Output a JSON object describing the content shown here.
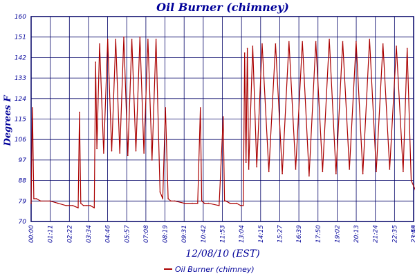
{
  "chart_data": {
    "type": "line",
    "title": "Oil Burner (chimney)",
    "xlabel": "12/08/10 (EST)",
    "ylabel": "Degrees F",
    "ylim": [
      70,
      160
    ],
    "y_ticks": [
      70,
      79,
      88,
      97,
      106,
      115,
      124,
      133,
      142,
      151,
      160
    ],
    "x_ticks": [
      "00:00",
      "01:11",
      "02:22",
      "03:34",
      "04:46",
      "05:57",
      "07:08",
      "08:19",
      "09:31",
      "10:42",
      "11:53",
      "13:04",
      "14:15",
      "15:27",
      "16:39",
      "17:50",
      "19:02",
      "20:13",
      "21:24",
      "22:35",
      "23:46",
      "23:59"
    ],
    "grid": true,
    "legend": "bottom-center",
    "series": [
      {
        "name": "Oil Burner (chimney)",
        "color": "#aa0000",
        "x": [
          "00:00",
          "00:05",
          "00:10",
          "00:20",
          "00:35",
          "01:10",
          "01:40",
          "02:10",
          "02:35",
          "02:55",
          "03:00",
          "03:05",
          "03:15",
          "03:25",
          "03:40",
          "03:55",
          "04:00",
          "04:05",
          "04:15",
          "04:30",
          "04:45",
          "05:00",
          "05:15",
          "05:30",
          "05:45",
          "06:00",
          "06:15",
          "06:30",
          "06:45",
          "07:00",
          "07:15",
          "07:30",
          "07:45",
          "08:00",
          "08:10",
          "08:20",
          "08:30",
          "08:40",
          "08:55",
          "09:30",
          "10:00",
          "10:20",
          "10:30",
          "10:35",
          "10:45",
          "11:00",
          "11:40",
          "11:55",
          "12:00",
          "12:05",
          "12:20",
          "12:45",
          "13:00",
          "13:10",
          "13:15",
          "13:20",
          "13:25",
          "13:30",
          "13:45",
          "14:00",
          "14:20",
          "14:45",
          "15:10",
          "15:35",
          "16:00",
          "16:25",
          "16:50",
          "17:15",
          "17:40",
          "18:05",
          "18:30",
          "18:55",
          "19:20",
          "19:45",
          "20:10",
          "20:35",
          "21:00",
          "21:25",
          "21:50",
          "22:15",
          "22:40",
          "23:05",
          "23:20",
          "23:35",
          "23:50",
          "23:59"
        ],
        "values": [
          78,
          120,
          80,
          80,
          79,
          79,
          78,
          77,
          77,
          76,
          118,
          78,
          77,
          77,
          77,
          76,
          140,
          102,
          148,
          100,
          150,
          101,
          150,
          100,
          151,
          99,
          150,
          101,
          151,
          100,
          150,
          97,
          150,
          83,
          80,
          120,
          80,
          79,
          79,
          78,
          78,
          78,
          120,
          79,
          78,
          78,
          77,
          116,
          79,
          79,
          78,
          78,
          77,
          77,
          144,
          96,
          146,
          93,
          147,
          94,
          148,
          92,
          148,
          91,
          149,
          93,
          149,
          90,
          149,
          92,
          150,
          91,
          149,
          93,
          149,
          91,
          150,
          92,
          148,
          93,
          147,
          92,
          146,
          88,
          84,
          83
        ]
      }
    ]
  }
}
